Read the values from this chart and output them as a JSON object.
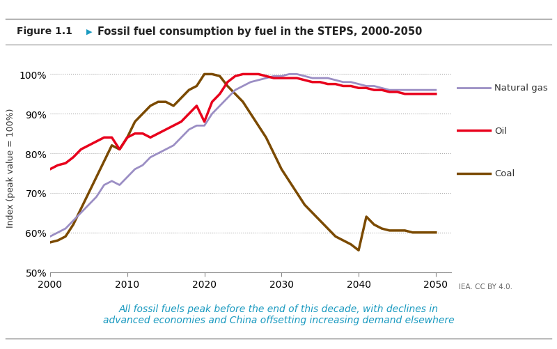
{
  "title": "Fossil fuel consumption by fuel in the STEPS, 2000-2050",
  "figure_label": "Figure 1.1",
  "ylabel": "Index (peak value = 100%)",
  "caption": "All fossil fuels peak before the end of this decade, with declines in\nadvanced economies and China offsetting increasing demand elsewhere",
  "credit": "IEA. CC BY 4.0.",
  "xlim": [
    2000,
    2052
  ],
  "ylim": [
    50,
    103
  ],
  "yticks": [
    50,
    60,
    70,
    80,
    90,
    100
  ],
  "ytick_labels": [
    "50%",
    "60%",
    "70%",
    "80%",
    "90%",
    "100%"
  ],
  "xticks": [
    2000,
    2010,
    2020,
    2030,
    2040,
    2050
  ],
  "colors": {
    "natural_gas": "#9b8ec4",
    "oil": "#e8001c",
    "coal": "#7b4a00"
  },
  "natural_gas": {
    "x": [
      2000,
      2001,
      2002,
      2003,
      2004,
      2005,
      2006,
      2007,
      2008,
      2009,
      2010,
      2011,
      2012,
      2013,
      2014,
      2015,
      2016,
      2017,
      2018,
      2019,
      2020,
      2021,
      2022,
      2023,
      2024,
      2025,
      2026,
      2027,
      2028,
      2029,
      2030,
      2031,
      2032,
      2033,
      2034,
      2035,
      2036,
      2037,
      2038,
      2039,
      2040,
      2041,
      2042,
      2043,
      2044,
      2045,
      2046,
      2047,
      2048,
      2049,
      2050
    ],
    "y": [
      59,
      60,
      61,
      63,
      65,
      67,
      69,
      72,
      73,
      72,
      74,
      76,
      77,
      79,
      80,
      81,
      82,
      84,
      86,
      87,
      87,
      90,
      92,
      94,
      96,
      97,
      98,
      98.5,
      99,
      99.5,
      99.5,
      100,
      100,
      99.5,
      99,
      99,
      99,
      98.5,
      98,
      98,
      97.5,
      97,
      97,
      96.5,
      96,
      96,
      96,
      96,
      96,
      96,
      96
    ]
  },
  "oil": {
    "x": [
      2000,
      2001,
      2002,
      2003,
      2004,
      2005,
      2006,
      2007,
      2008,
      2009,
      2010,
      2011,
      2012,
      2013,
      2014,
      2015,
      2016,
      2017,
      2018,
      2019,
      2020,
      2021,
      2022,
      2023,
      2024,
      2025,
      2026,
      2027,
      2028,
      2029,
      2030,
      2031,
      2032,
      2033,
      2034,
      2035,
      2036,
      2037,
      2038,
      2039,
      2040,
      2041,
      2042,
      2043,
      2044,
      2045,
      2046,
      2047,
      2048,
      2049,
      2050
    ],
    "y": [
      76,
      77,
      77.5,
      79,
      81,
      82,
      83,
      84,
      84,
      81,
      84,
      85,
      85,
      84,
      85,
      86,
      87,
      88,
      90,
      92,
      88,
      93,
      95,
      98,
      99.5,
      100,
      100,
      100,
      99.5,
      99,
      99,
      99,
      99,
      98.5,
      98,
      98,
      97.5,
      97.5,
      97,
      97,
      96.5,
      96.5,
      96,
      96,
      95.5,
      95.5,
      95,
      95,
      95,
      95,
      95
    ]
  },
  "coal": {
    "x": [
      2000,
      2001,
      2002,
      2003,
      2004,
      2005,
      2006,
      2007,
      2008,
      2009,
      2010,
      2011,
      2012,
      2013,
      2014,
      2015,
      2016,
      2017,
      2018,
      2019,
      2020,
      2021,
      2022,
      2023,
      2024,
      2025,
      2026,
      2027,
      2028,
      2029,
      2030,
      2031,
      2032,
      2033,
      2034,
      2035,
      2036,
      2037,
      2038,
      2039,
      2040,
      2041,
      2042,
      2043,
      2044,
      2045,
      2046,
      2047,
      2048,
      2049,
      2050
    ],
    "y": [
      57.5,
      58,
      59,
      62,
      66,
      70,
      74,
      78,
      82,
      81,
      84,
      88,
      90,
      92,
      93,
      93,
      92,
      94,
      96,
      97,
      100,
      100,
      99.5,
      97,
      95,
      93,
      90,
      87,
      84,
      80,
      76,
      73,
      70,
      67,
      65,
      63,
      61,
      59,
      58,
      57,
      55.5,
      64,
      62,
      61,
      60.5,
      60.5,
      60.5,
      60,
      60,
      60,
      60
    ]
  },
  "background_color": "#ffffff",
  "grid_color": "#aaaaaa",
  "border_color": "#cccccc",
  "caption_color": "#1a9ac0",
  "credit_color": "#666666"
}
